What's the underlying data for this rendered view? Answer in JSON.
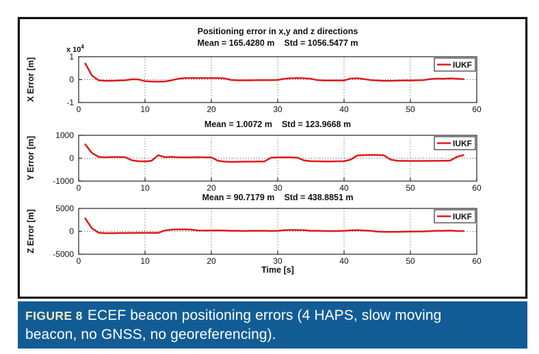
{
  "figure": {
    "caption_label": "FIGURE 8",
    "caption_text": "ECEF beacon positioning errors (4 HAPS, slow moving beacon, no GNSS, no georeferencing).",
    "caption_bg": "#125C96",
    "caption_label_color": "#EFE9C5",
    "caption_text_color": "#FFFFFF",
    "frame_border_color": "#0D0D0D"
  },
  "chart_data": [
    {
      "type": "line",
      "title": "Positioning error in x,y and z directions",
      "stats": {
        "mean": "Mean = 165.4280 m",
        "std": "Std = 1056.5477 m"
      },
      "ylabel": "X Error [m]",
      "xlabel": "",
      "xlim": [
        0,
        60
      ],
      "ylim": [
        -10000,
        10000
      ],
      "xticks": [
        0,
        10,
        20,
        30,
        40,
        50,
        60
      ],
      "ytick_vals": [
        10000,
        0,
        -10000
      ],
      "ytick_labels": [
        "1",
        "0",
        "-1"
      ],
      "y_exponent": {
        "base": "x 10",
        "exp": "4"
      },
      "grid": true,
      "legend_position": "top-right",
      "legend": [
        {
          "label": "IUKF",
          "color": "#E01A1A"
        }
      ],
      "series": [
        {
          "name": "IUKF",
          "color": "#E01A1A",
          "x": [
            1,
            2,
            3,
            4,
            5,
            6,
            7,
            8,
            9,
            10,
            11,
            12,
            13,
            14,
            15,
            16,
            17,
            18,
            19,
            20,
            21,
            22,
            23,
            24,
            25,
            26,
            27,
            28,
            29,
            30,
            31,
            32,
            33,
            34,
            35,
            36,
            37,
            38,
            39,
            40,
            41,
            42,
            43,
            44,
            45,
            46,
            47,
            48,
            49,
            50,
            51,
            52,
            53,
            54,
            55,
            56,
            57,
            58
          ],
          "y": [
            7000,
            1800,
            -300,
            -500,
            -500,
            -400,
            -300,
            150,
            100,
            -700,
            -850,
            -900,
            -800,
            -300,
            400,
            650,
            700,
            700,
            700,
            700,
            650,
            500,
            -150,
            -300,
            -300,
            -300,
            -250,
            -200,
            -200,
            -150,
            350,
            600,
            700,
            600,
            400,
            -250,
            -400,
            -400,
            -400,
            -350,
            450,
            600,
            250,
            -200,
            -350,
            -500,
            -500,
            -450,
            -400,
            -350,
            -300,
            -200,
            250,
            450,
            350,
            550,
            350,
            250
          ]
        }
      ]
    },
    {
      "type": "line",
      "title": "",
      "stats": {
        "mean": "Mean = 1.0072 m",
        "std": "Std = 123.9668 m"
      },
      "ylabel": "Y Error [m]",
      "xlabel": "",
      "xlim": [
        0,
        60
      ],
      "ylim": [
        -1000,
        1000
      ],
      "xticks": [
        0,
        10,
        20,
        30,
        40,
        50,
        60
      ],
      "ytick_vals": [
        1000,
        0,
        -1000
      ],
      "ytick_labels": [
        "1000",
        "0",
        "-1000"
      ],
      "grid": true,
      "legend_position": "top-right",
      "legend": [
        {
          "label": "IUKF",
          "color": "#E01A1A"
        }
      ],
      "series": [
        {
          "name": "IUKF",
          "color": "#E01A1A",
          "x": [
            1,
            2,
            3,
            4,
            5,
            6,
            7,
            8,
            9,
            10,
            11,
            12,
            13,
            14,
            15,
            16,
            17,
            18,
            19,
            20,
            21,
            22,
            23,
            24,
            25,
            26,
            27,
            28,
            29,
            30,
            31,
            32,
            33,
            34,
            35,
            36,
            37,
            38,
            39,
            40,
            41,
            42,
            43,
            44,
            45,
            46,
            47,
            48,
            49,
            50,
            51,
            52,
            53,
            54,
            55,
            56,
            57,
            58
          ],
          "y": [
            600,
            230,
            60,
            40,
            50,
            55,
            45,
            -90,
            -130,
            -140,
            -110,
            130,
            45,
            60,
            40,
            35,
            40,
            45,
            40,
            35,
            -110,
            -150,
            -160,
            -155,
            -150,
            -150,
            -145,
            -140,
            25,
            35,
            40,
            35,
            25,
            -100,
            -130,
            -135,
            -140,
            -140,
            -135,
            -130,
            -60,
            120,
            135,
            140,
            140,
            125,
            -60,
            -110,
            -115,
            -120,
            -120,
            -120,
            -115,
            -115,
            -110,
            -105,
            60,
            135
          ]
        }
      ]
    },
    {
      "type": "line",
      "title": "",
      "stats": {
        "mean": "Mean = 90.7179 m",
        "std": "Std = 438.8851 m"
      },
      "ylabel": "Z Error [m]",
      "xlabel": "Time [s]",
      "xlim": [
        0,
        60
      ],
      "ylim": [
        -5000,
        5000
      ],
      "xticks": [
        0,
        10,
        20,
        30,
        40,
        50,
        60
      ],
      "ytick_vals": [
        5000,
        0,
        -5000
      ],
      "ytick_labels": [
        "5000",
        "0",
        "-5000"
      ],
      "grid": true,
      "legend_position": "top-right",
      "legend": [
        {
          "label": "IUKF",
          "color": "#E01A1A"
        }
      ],
      "series": [
        {
          "name": "IUKF",
          "color": "#E01A1A",
          "x": [
            1,
            2,
            3,
            4,
            5,
            6,
            7,
            8,
            9,
            10,
            11,
            12,
            13,
            14,
            15,
            16,
            17,
            18,
            19,
            20,
            21,
            22,
            23,
            24,
            25,
            26,
            27,
            28,
            29,
            30,
            31,
            32,
            33,
            34,
            35,
            36,
            37,
            38,
            39,
            40,
            41,
            42,
            43,
            44,
            45,
            46,
            47,
            48,
            49,
            50,
            51,
            52,
            53,
            54,
            55,
            56,
            57,
            58
          ],
          "y": [
            2800,
            650,
            -300,
            -420,
            -400,
            -380,
            -370,
            -360,
            -350,
            -350,
            -340,
            -330,
            200,
            380,
            420,
            420,
            380,
            180,
            160,
            200,
            210,
            160,
            120,
            100,
            80,
            100,
            120,
            100,
            80,
            100,
            250,
            300,
            280,
            250,
            120,
            100,
            80,
            60,
            80,
            100,
            220,
            260,
            200,
            100,
            -60,
            -100,
            -120,
            -100,
            -80,
            -60,
            -40,
            -20,
            60,
            120,
            100,
            160,
            80,
            60
          ]
        }
      ]
    }
  ]
}
